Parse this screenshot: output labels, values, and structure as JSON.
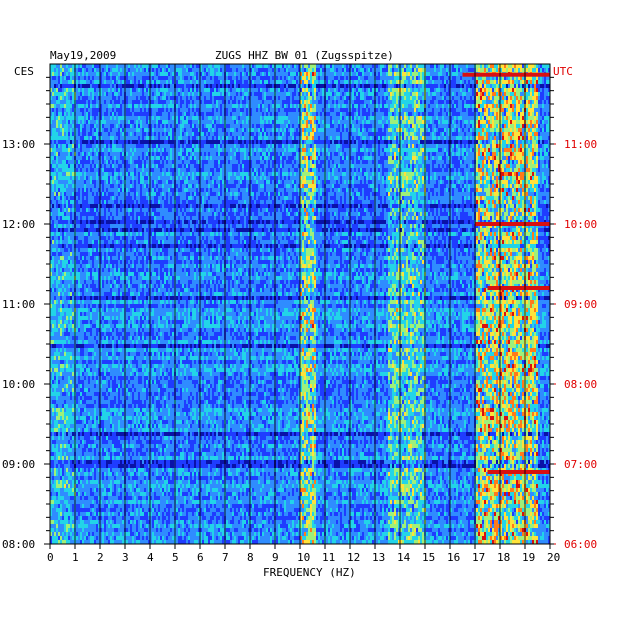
{
  "chart_data": {
    "type": "heatmap",
    "date": "May19,2009",
    "title": "ZUGS HHZ BW 01 (Zugsspitze)",
    "left_axis_label": "CES",
    "right_axis_label": "UTC",
    "xlabel": "FREQUENCY (HZ)",
    "xlim": [
      0,
      20
    ],
    "x_ticks": [
      "0",
      "1",
      "2",
      "3",
      "4",
      "5",
      "6",
      "7",
      "8",
      "9",
      "10",
      "11",
      "12",
      "13",
      "14",
      "15",
      "16",
      "17",
      "18",
      "19",
      "20"
    ],
    "left_time_ticks": [
      "13:00",
      "12:00",
      "11:00",
      "10:00",
      "09:00",
      "08:00"
    ],
    "right_time_ticks": [
      "11:00",
      "10:00",
      "09:00",
      "08:00",
      "07:00",
      "06:00"
    ],
    "time_range_ces": [
      "08:00",
      "13:55"
    ],
    "colorscale": [
      "#0a12a8",
      "#1f3cff",
      "#2f8cff",
      "#22d4e8",
      "#9ef07a",
      "#ffe23a",
      "#ff7a1a",
      "#d81010"
    ],
    "features": [
      {
        "name": "persistent band 17-19.5 Hz",
        "freq": [
          17,
          19.5
        ],
        "level": 0.55
      },
      {
        "name": "band 10-10.6 Hz",
        "freq": [
          10,
          10.6
        ],
        "level": 0.45
      },
      {
        "name": "band 13.5-15 Hz",
        "freq": [
          13.5,
          15
        ],
        "level": 0.3
      },
      {
        "name": "strong red line",
        "freq": [
          16.5,
          20
        ],
        "time_ces": "13:52",
        "level": 1.0
      },
      {
        "name": "strong red line",
        "freq": [
          17,
          20
        ],
        "time_ces": "12:00",
        "level": 1.0
      },
      {
        "name": "strong red line",
        "freq": [
          17.5,
          20
        ],
        "time_ces": "11:12",
        "level": 0.95
      },
      {
        "name": "strong red line",
        "freq": [
          17.5,
          20
        ],
        "time_ces": "08:54",
        "level": 0.95
      }
    ]
  }
}
